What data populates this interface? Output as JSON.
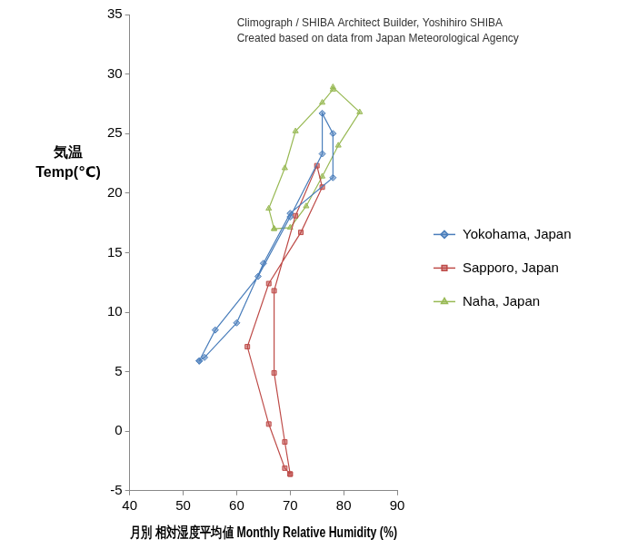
{
  "chart_data": {
    "type": "scatter",
    "annotations": [
      "Climograph / SHIBA Architect Builder, Yoshihiro SHIBA",
      "Created based on data from Japan Meteorological Agency"
    ],
    "xlabel": "月別 相対湿度平均値 Monthly Relative Humidity (%)",
    "ylabel": [
      "気温",
      "Temp(℃)"
    ],
    "xlim": [
      40,
      90
    ],
    "xticks": [
      40,
      50,
      60,
      70,
      80,
      90
    ],
    "ylim": [
      -5,
      35
    ],
    "yticks": [
      -5,
      0,
      5,
      10,
      15,
      20,
      25,
      30,
      35
    ],
    "grid": false,
    "legend": "right",
    "line_style": "closed",
    "series": [
      {
        "name": "Yokohama, Japan",
        "color": "#4a7ebb",
        "marker": "diamond",
        "x": [
          53,
          54,
          60,
          65,
          70,
          78,
          78,
          76,
          76,
          70,
          64,
          56
        ],
        "values": [
          5.9,
          6.2,
          9.1,
          14.1,
          18.3,
          21.3,
          25.0,
          26.7,
          23.3,
          18.0,
          13.0,
          8.5
        ]
      },
      {
        "name": "Sapporo, Japan",
        "color": "#be4b48",
        "marker": "square",
        "x": [
          70,
          69,
          66,
          62,
          66,
          72,
          76,
          75,
          71,
          67,
          67,
          69
        ],
        "values": [
          -3.6,
          -3.1,
          0.6,
          7.1,
          12.4,
          16.7,
          20.5,
          22.3,
          18.1,
          11.8,
          4.9,
          -0.9
        ]
      },
      {
        "name": "Naha, Japan",
        "color": "#98b954",
        "marker": "triangle",
        "x": [
          67,
          70,
          73,
          76,
          79,
          83,
          78,
          78,
          76,
          71,
          69,
          66
        ],
        "values": [
          17.0,
          17.1,
          18.9,
          21.4,
          24.0,
          26.8,
          28.9,
          28.7,
          27.6,
          25.2,
          22.1,
          18.7
        ]
      }
    ]
  }
}
